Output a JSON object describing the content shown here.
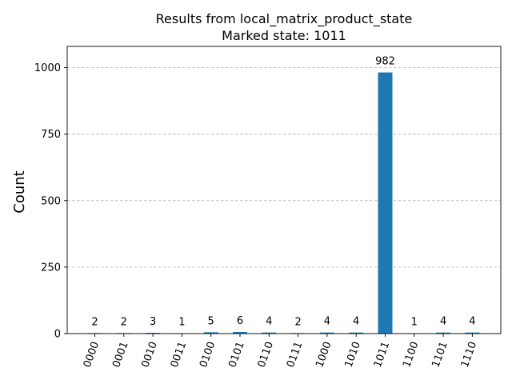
{
  "chart_data": {
    "type": "bar",
    "title": "Results from local_matrix_product_state",
    "subtitle": "Marked state: 1011",
    "xlabel": "",
    "ylabel": "Count",
    "categories": [
      "0000",
      "0001",
      "0010",
      "0011",
      "0100",
      "0101",
      "0110",
      "0111",
      "1000",
      "1010",
      "1011",
      "1100",
      "1101",
      "1110"
    ],
    "values": [
      2,
      2,
      3,
      1,
      5,
      6,
      4,
      2,
      4,
      4,
      982,
      1,
      4,
      4
    ],
    "ylim": [
      0,
      1080
    ],
    "yticks": [
      0,
      250,
      500,
      750,
      1000
    ],
    "grid": "horizontal dashed",
    "bar_color": "#1f77b4",
    "data_labels": true,
    "legend": "none"
  }
}
